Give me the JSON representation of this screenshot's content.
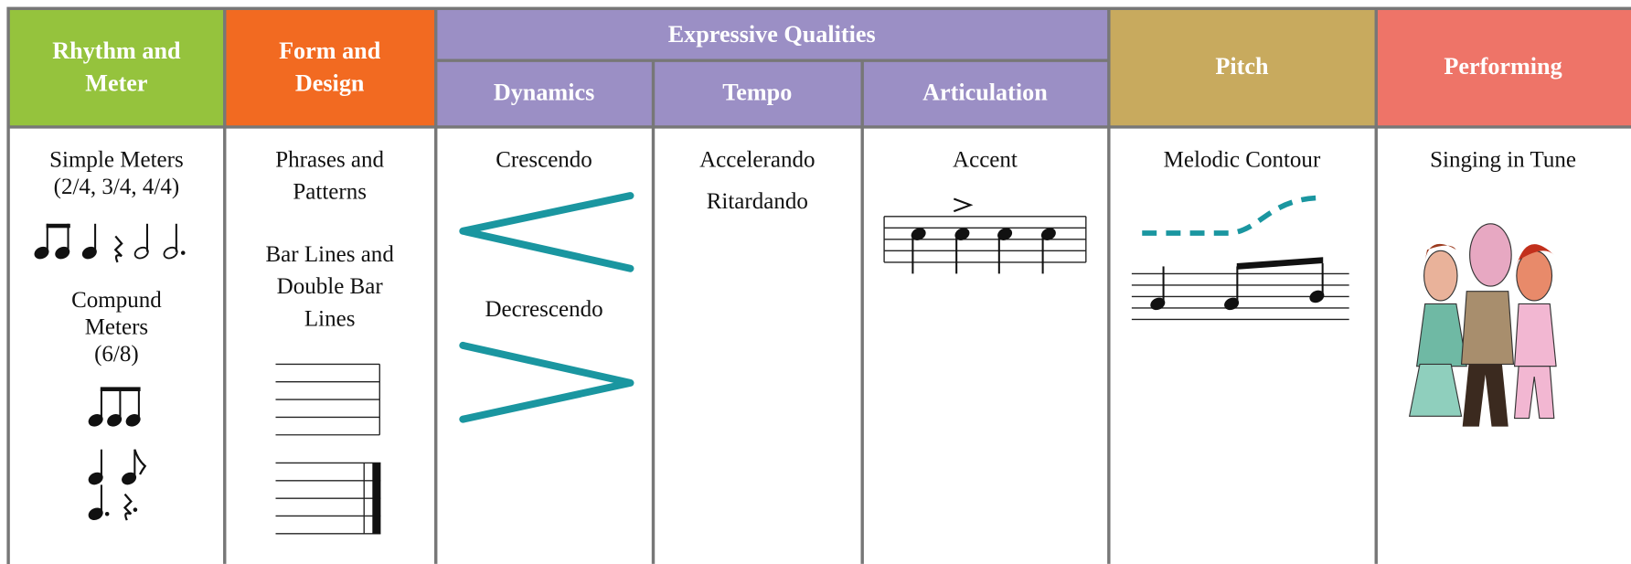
{
  "header": {
    "columns": [
      {
        "lines": [
          "Rhythm and",
          "Meter"
        ]
      },
      {
        "lines": [
          "Form and",
          "Design"
        ]
      },
      {
        "lines": [
          "Expressive Qualities"
        ],
        "subheaders": [
          "Dynamics",
          "Tempo",
          "Articulation"
        ]
      },
      {
        "lines": [
          "Pitch"
        ]
      },
      {
        "lines": [
          "Performing"
        ]
      }
    ]
  },
  "body": {
    "columns": [
      [
        "Simple Meters",
        "(2/4, 3/4, 4/4)",
        "Compund",
        "Meters",
        "(6/8)"
      ],
      [
        "Phrases and",
        "Patterns",
        "Bar Lines and",
        "Double Bar",
        "Lines"
      ],
      [
        "Crescendo",
        "Decrescendo"
      ],
      [
        "Accelerando",
        "Ritardando"
      ],
      [
        "Accent"
      ],
      [
        "Melodic Contour"
      ],
      [
        "Singing in Tune"
      ]
    ]
  }
}
